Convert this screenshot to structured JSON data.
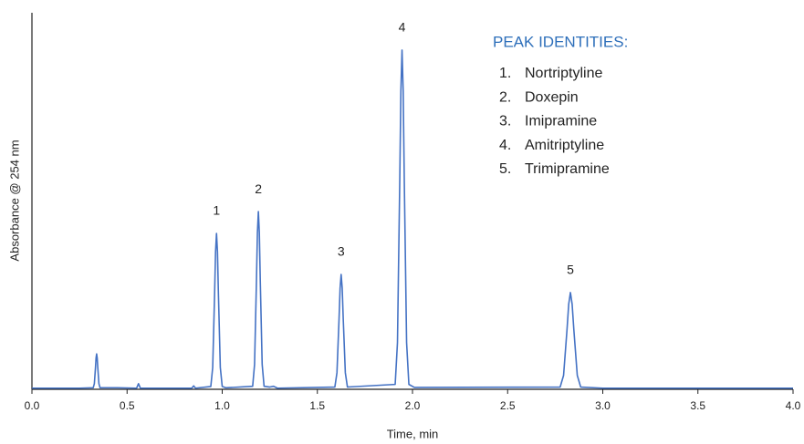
{
  "chart_data": {
    "type": "line",
    "x_label": "Time, min",
    "y_label": "Absorbance @ 254 nm",
    "legend_title": "PEAK IDENTITIES:",
    "legend_items": [
      {
        "number": "1.",
        "name": "Nortriptyline"
      },
      {
        "number": "2.",
        "name": "Doxepin"
      },
      {
        "number": "3.",
        "name": "Imipramine"
      },
      {
        "number": "4.",
        "name": "Amitriptyline"
      },
      {
        "number": "5.",
        "name": "Trimipramine"
      }
    ],
    "peak_labels": [
      "1",
      "2",
      "3",
      "4",
      "5"
    ],
    "xlim": [
      0,
      4
    ],
    "xticks": [
      {
        "value": 0,
        "label": "0.0"
      },
      0.5,
      {
        "value": 1,
        "label": "1.0"
      },
      1.5,
      {
        "value": 2,
        "label": "2.0"
      },
      2.5,
      {
        "value": 3,
        "label": "3.0"
      },
      3.5,
      {
        "value": 4,
        "label": "4.0"
      }
    ],
    "ylim": [
      0,
      100
    ],
    "series": [
      {
        "color": "#4472c4",
        "x": [
          0,
          0.1,
          0.25,
          0.322,
          0.328,
          0.334,
          0.337,
          0.34,
          0.343,
          0.346,
          0.352,
          0.358,
          0.45,
          0.55,
          0.56,
          0.57,
          0.7,
          0.84,
          0.85,
          0.86,
          0.94,
          0.95,
          0.96,
          0.965,
          0.97,
          0.975,
          0.98,
          0.99,
          1.0,
          1.02,
          1.16,
          1.17,
          1.18,
          1.185,
          1.19,
          1.195,
          1.2,
          1.21,
          1.22,
          1.25,
          1.27,
          1.29,
          1.592,
          1.603,
          1.614,
          1.6195,
          1.625,
          1.6305,
          1.636,
          1.647,
          1.658,
          1.909,
          1.921,
          1.933,
          1.939,
          1.945,
          1.951,
          1.957,
          1.969,
          1.981,
          2.01,
          2.776,
          2.794,
          2.812,
          2.821,
          2.83,
          2.839,
          2.848,
          2.866,
          2.884,
          3.0,
          3.5,
          4.0
        ],
        "values": [
          0.3,
          0.3,
          0.3,
          0.4,
          1.5,
          5.8,
          8.3,
          9.4,
          8.3,
          5.8,
          1.5,
          0.4,
          0.4,
          0.3,
          1.5,
          0.3,
          0.3,
          0.3,
          0.9,
          0.3,
          0.75,
          5.8,
          25.4,
          36.5,
          41.4,
          36.5,
          25.4,
          5.8,
          0.75,
          0.4,
          0.8,
          6.6,
          28.9,
          41.6,
          47.2,
          41.6,
          28.9,
          6.6,
          0.8,
          0.6,
          0.8,
          0.3,
          0.6,
          4.4,
          18.7,
          26.9,
          30.5,
          26.9,
          18.7,
          4.4,
          0.6,
          1.3,
          12.4,
          55.1,
          79.3,
          90.1,
          79.3,
          55.1,
          12.4,
          1.3,
          0.5,
          0.6,
          3.7,
          15.8,
          22.6,
          25.7,
          22.6,
          15.8,
          3.7,
          0.6,
          0.3,
          0.3,
          0.3
        ]
      }
    ]
  }
}
